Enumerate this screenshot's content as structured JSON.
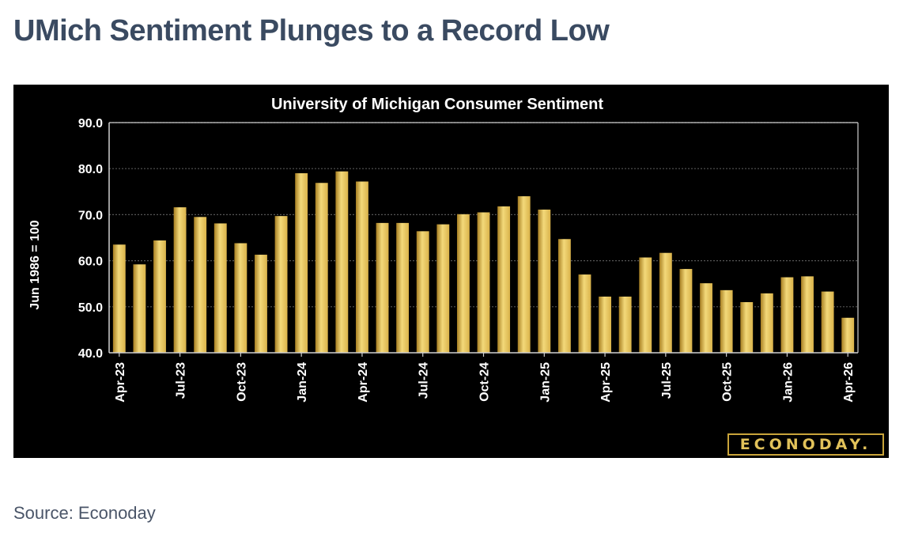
{
  "page": {
    "headline": "UMich Sentiment Plunges to a Record Low",
    "source": "Source: Econoday",
    "logo_text": "ECONODAY."
  },
  "colors": {
    "bar": "#d9b24a",
    "bar_light": "#f3d97a",
    "bar_dark": "#a87f22",
    "panel": "#000000",
    "axis": "#cfcfcf",
    "grid": "#555555",
    "text": "#ffffff",
    "headline": "#3a4a61"
  },
  "chart_data": {
    "type": "bar",
    "title": "University of Michigan Consumer Sentiment",
    "ylabel": "Jun 1986 = 100",
    "xlabel": "",
    "ylim": [
      40,
      90
    ],
    "yticks": [
      "40.0",
      "50.0",
      "60.0",
      "70.0",
      "80.0",
      "90.0"
    ],
    "grid": true,
    "categories": [
      "Apr-23",
      "May-23",
      "Jun-23",
      "Jul-23",
      "Aug-23",
      "Sep-23",
      "Oct-23",
      "Nov-23",
      "Dec-23",
      "Jan-24",
      "Feb-24",
      "Mar-24",
      "Apr-24",
      "May-24",
      "Jun-24",
      "Jul-24",
      "Aug-24",
      "Sep-24",
      "Oct-24",
      "Nov-24",
      "Dec-24",
      "Jan-25",
      "Feb-25",
      "Mar-25",
      "Apr-25",
      "May-25",
      "Jun-25",
      "Jul-25",
      "Aug-25",
      "Sep-25",
      "Oct-25",
      "Nov-25",
      "Dec-25",
      "Jan-26",
      "Feb-26",
      "Mar-26",
      "Apr-26"
    ],
    "tick_labels": [
      "Apr-23",
      "Jul-23",
      "Oct-23",
      "Jan-24",
      "Apr-24",
      "Jul-24",
      "Oct-24",
      "Jan-25",
      "Apr-25",
      "Jul-25",
      "Oct-25",
      "Jan-26",
      "Apr-26"
    ],
    "values": [
      63.5,
      59.2,
      64.4,
      71.6,
      69.5,
      68.1,
      63.8,
      61.3,
      69.7,
      79.0,
      76.9,
      79.4,
      77.2,
      68.2,
      68.2,
      66.4,
      67.9,
      70.1,
      70.5,
      71.8,
      74.0,
      71.1,
      64.7,
      57.0,
      52.2,
      52.2,
      60.7,
      61.7,
      58.2,
      55.1,
      53.6,
      51.0,
      52.9,
      56.4,
      56.6,
      53.3,
      47.6
    ]
  }
}
